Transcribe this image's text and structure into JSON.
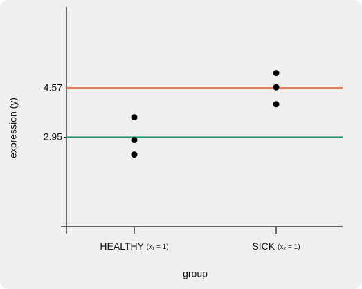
{
  "chart_data": {
    "type": "strip",
    "x_label": "group",
    "y_label": "expression (y)",
    "categories": [
      "HEALTHY",
      "SICK"
    ],
    "category_notes": [
      "(x₁ = 1)",
      "(x₂ = 1)"
    ],
    "values": [
      [
        3.61,
        2.86,
        2.38
      ],
      [
        5.07,
        4.6,
        4.04
      ]
    ],
    "color": "#000000",
    "hlines": [
      {
        "value": 4.57,
        "color": "#e4572e"
      },
      {
        "value": 2.95,
        "color": "#1e9e6e"
      }
    ],
    "ylim": [
      0,
      7.25
    ],
    "yticks": [
      2.95,
      4.57
    ]
  }
}
